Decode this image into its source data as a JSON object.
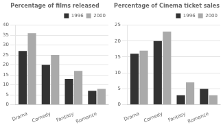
{
  "chart_data": [
    {
      "type": "bar",
      "title": "Percentage of films released",
      "categories": [
        "Drama",
        "Comedy",
        "Fantasy",
        "Romance"
      ],
      "series": [
        {
          "name": "1996",
          "color": "#333333",
          "values": [
            27,
            20,
            13,
            7
          ]
        },
        {
          "name": "2000",
          "color": "#aaaaaa",
          "values": [
            36,
            25,
            17,
            8
          ]
        }
      ],
      "ylim": [
        0,
        40
      ],
      "yticks": [
        0,
        5,
        10,
        15,
        20,
        25,
        30,
        35,
        40
      ],
      "grid": true,
      "legend": "upper right"
    },
    {
      "type": "bar",
      "title": "Percentage of Cinema ticket sales",
      "categories": [
        "Drama",
        "Comedy",
        "Fantasy",
        "Romance"
      ],
      "series": [
        {
          "name": "1996",
          "color": "#333333",
          "values": [
            16,
            20,
            3,
            5
          ]
        },
        {
          "name": "2000",
          "color": "#aaaaaa",
          "values": [
            17,
            23,
            7,
            3
          ]
        }
      ],
      "ylim": [
        0,
        25
      ],
      "yticks": [
        0,
        5,
        10,
        15,
        20,
        25
      ],
      "grid": true,
      "legend": "upper right"
    }
  ]
}
